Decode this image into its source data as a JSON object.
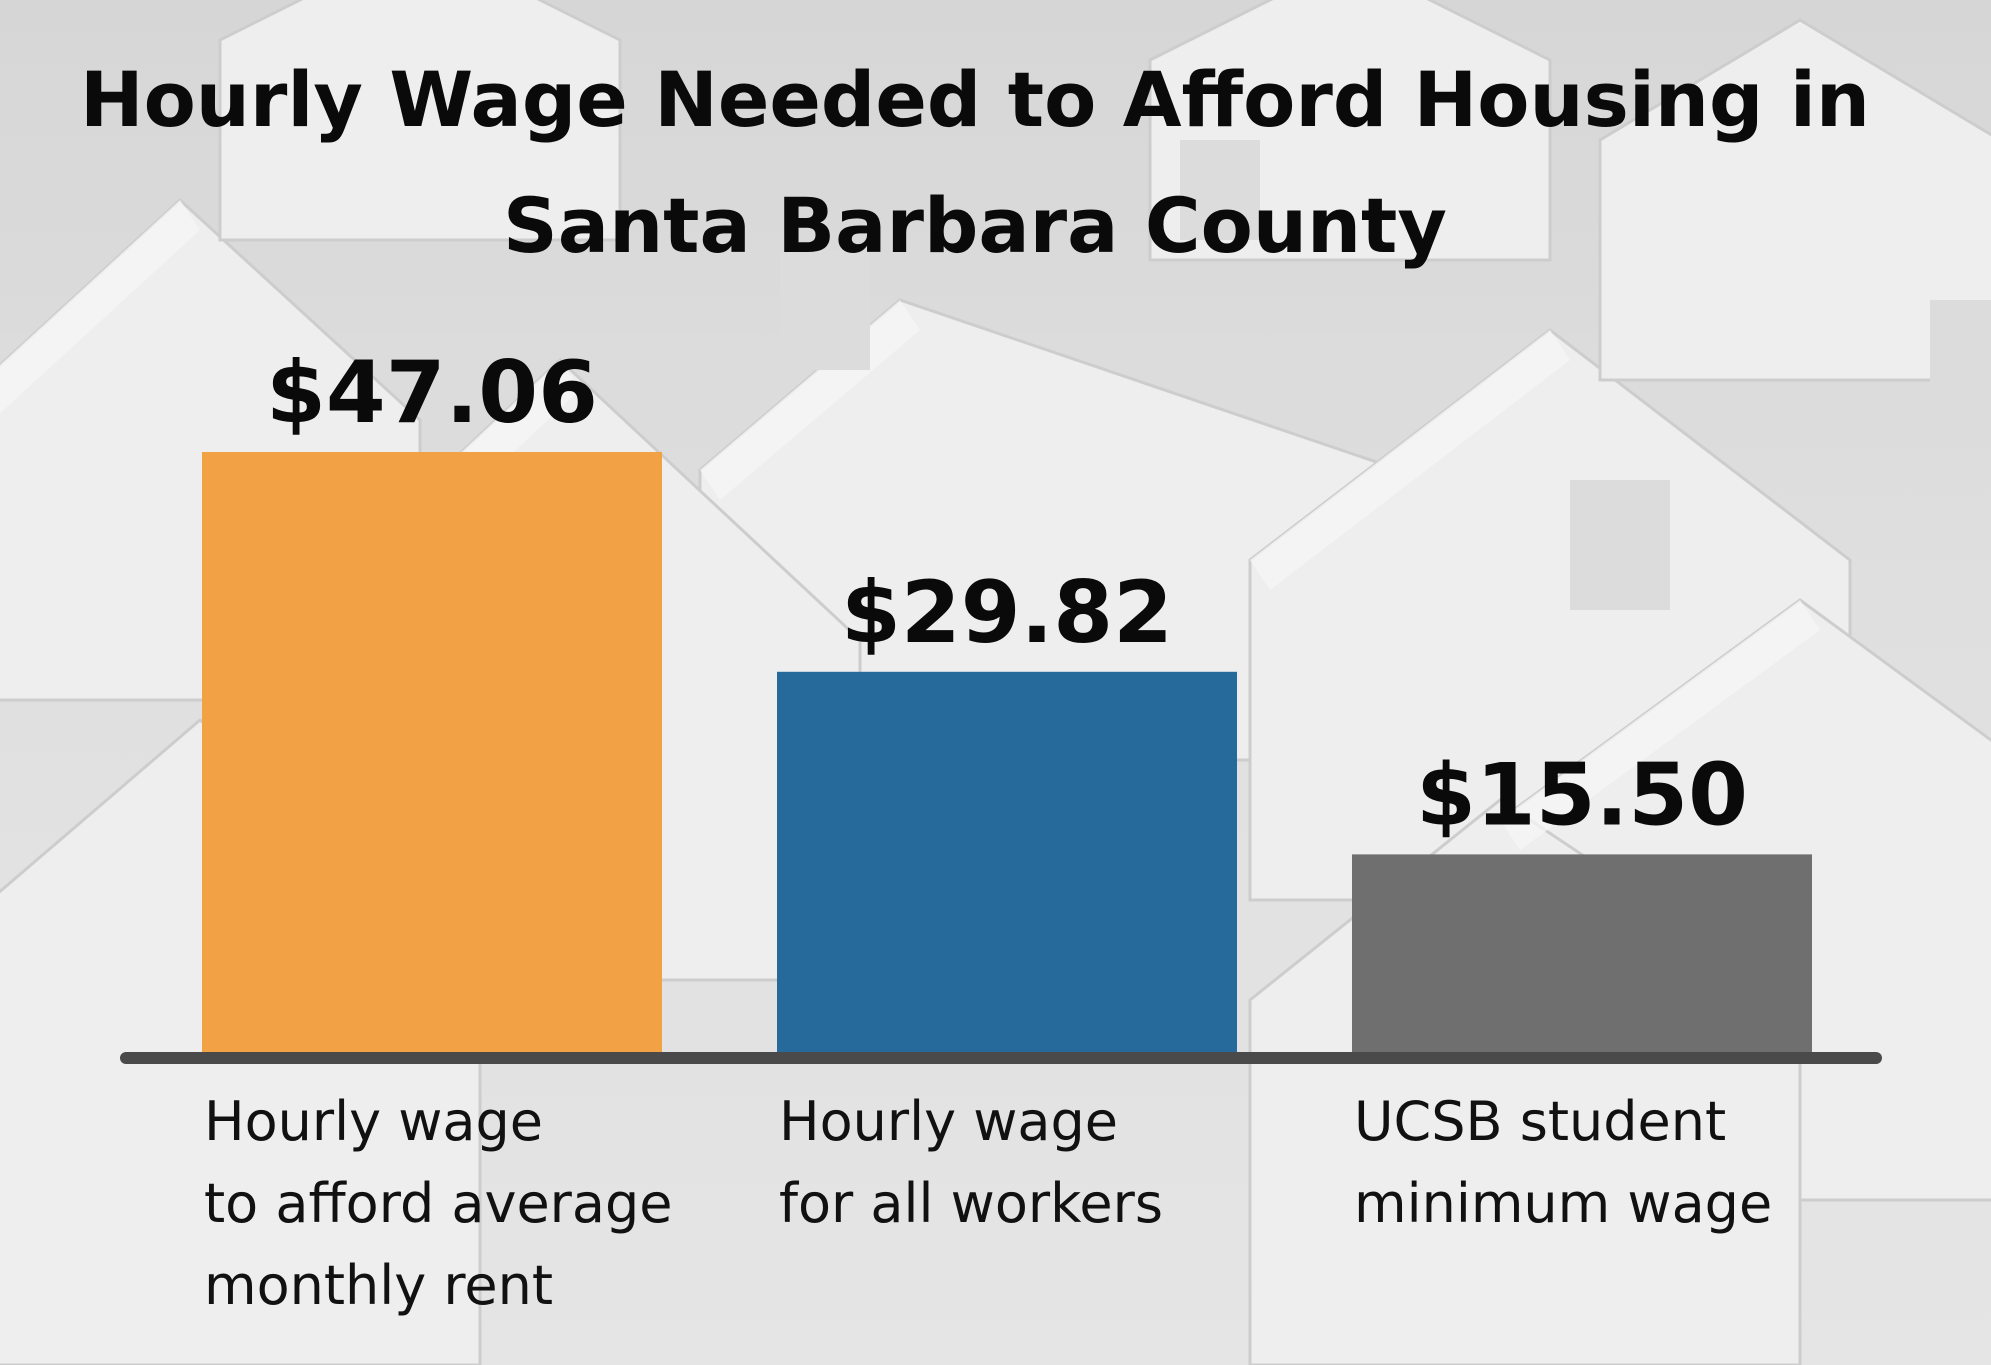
{
  "title": {
    "line1": "Hourly Wage Needed to Afford Housing in",
    "line2": "Santa Barbara County"
  },
  "chart_data": {
    "type": "bar",
    "categories": [
      [
        "Hourly wage",
        "to afford average",
        "monthly rent"
      ],
      [
        "Hourly wage",
        "for all workers"
      ],
      [
        "UCSB student",
        "minimum wage"
      ]
    ],
    "values": [
      47.06,
      29.82,
      15.5
    ],
    "data_labels": [
      "$47.06",
      "$29.82",
      "$15.50"
    ],
    "colors": [
      "#f2a245",
      "#26699b",
      "#6f6f6f"
    ],
    "ylim": [
      0,
      47.06
    ],
    "grid": false,
    "legend": "none",
    "baseline_color": "#4a4a4a"
  }
}
